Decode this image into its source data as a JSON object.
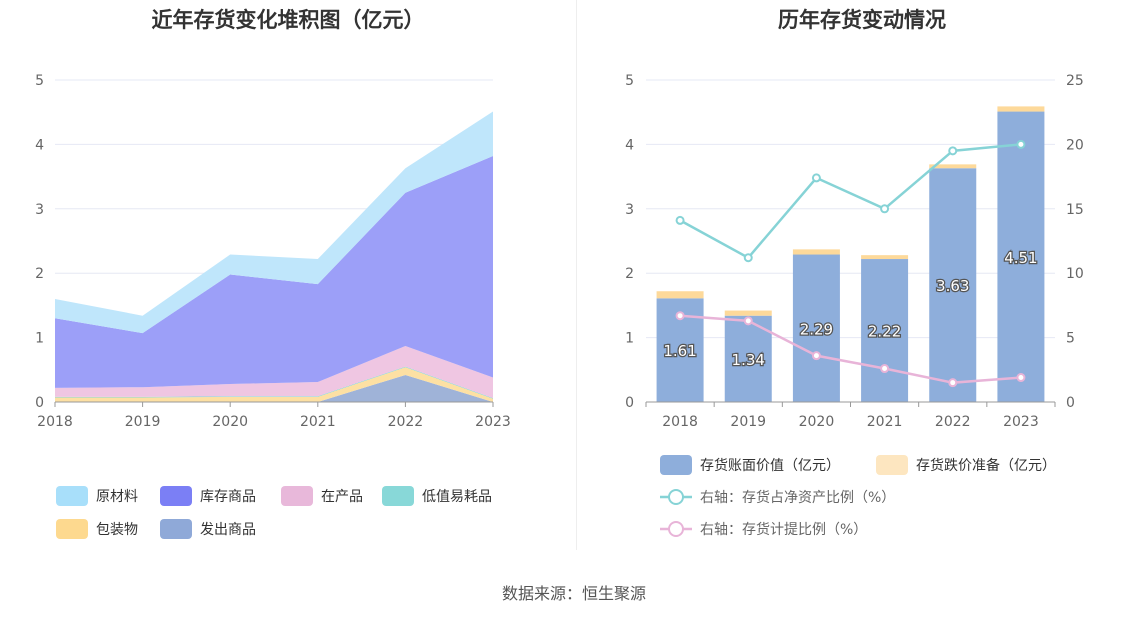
{
  "left_title": "近年存货变化堆积图（亿元）",
  "right_title": "历年存货变动情况",
  "source": "数据来源：恒生聚源",
  "chart_data": [
    {
      "type": "area",
      "stacked": true,
      "title": "近年存货变化堆积图（亿元）",
      "categories": [
        "2018",
        "2019",
        "2020",
        "2021",
        "2022",
        "2023"
      ],
      "ylim": [
        0,
        5
      ],
      "yticks": [
        0,
        1,
        2,
        3,
        4,
        5
      ],
      "series": [
        {
          "name": "发出商品",
          "color": "#9fb3d8",
          "values": [
            0.0,
            0.0,
            0.0,
            0.0,
            0.42,
            0.0
          ]
        },
        {
          "name": "包装物",
          "color": "#fde0a3",
          "values": [
            0.07,
            0.07,
            0.08,
            0.08,
            0.12,
            0.05
          ]
        },
        {
          "name": "低值易耗品",
          "color": "#88d8d8",
          "values": [
            0.01,
            0.01,
            0.01,
            0.01,
            0.01,
            0.01
          ]
        },
        {
          "name": "在产品",
          "color": "#efc6e2",
          "values": [
            0.14,
            0.15,
            0.19,
            0.22,
            0.32,
            0.32
          ]
        },
        {
          "name": "库存商品",
          "color": "#9c9ff8",
          "values": [
            1.08,
            0.84,
            1.7,
            1.52,
            2.38,
            3.44
          ]
        },
        {
          "name": "原材料",
          "color": "#bfe6fb",
          "values": [
            0.3,
            0.27,
            0.31,
            0.39,
            0.38,
            0.69
          ]
        }
      ],
      "legend": [
        {
          "name": "原材料",
          "color": "#a8dffa"
        },
        {
          "name": "库存商品",
          "color": "#7b7ff5"
        },
        {
          "name": "在产品",
          "color": "#e8b8da"
        },
        {
          "name": "低值易耗品",
          "color": "#88d8d8"
        },
        {
          "name": "包装物",
          "color": "#fdd98f"
        },
        {
          "name": "发出商品",
          "color": "#8fa9d8"
        }
      ],
      "legend_position": "bottom"
    },
    {
      "type": "bar",
      "title": "历年存货变动情况",
      "categories": [
        "2018",
        "2019",
        "2020",
        "2021",
        "2022",
        "2023"
      ],
      "ylim": [
        0,
        5
      ],
      "yticks": [
        0,
        1,
        2,
        3,
        4,
        5
      ],
      "y2lim": [
        0,
        25
      ],
      "y2ticks": [
        0,
        5,
        10,
        15,
        20,
        25
      ],
      "series": [
        {
          "name": "存货账面价值（亿元）",
          "type": "bar",
          "stack": "inv",
          "color": "#8eaedb",
          "values": [
            1.61,
            1.34,
            2.29,
            2.22,
            3.63,
            4.51
          ],
          "labels": [
            "1.61",
            "1.34",
            "2.29",
            "2.22",
            "3.63",
            "4.51"
          ]
        },
        {
          "name": "存货跌价准备（亿元）",
          "type": "bar",
          "stack": "inv",
          "color": "#fdd99a",
          "values": [
            0.11,
            0.08,
            0.08,
            0.06,
            0.06,
            0.08
          ]
        },
        {
          "name": "右轴：存货占净资产比例（%）",
          "type": "line",
          "axis": "right",
          "color": "#86d3d6",
          "values": [
            14.1,
            11.2,
            17.4,
            15.0,
            19.5,
            20.0
          ]
        },
        {
          "name": "右轴：存货计提比例（%）",
          "type": "line",
          "axis": "right",
          "color": "#e8b4d8",
          "values": [
            6.7,
            6.3,
            3.6,
            2.6,
            1.5,
            1.9
          ]
        }
      ],
      "legend": [
        {
          "name": "存货账面价值（亿元）",
          "color": "#8eaedb",
          "kind": "bar"
        },
        {
          "name": "存货跌价准备（亿元）",
          "color": "#fde6c0",
          "kind": "bar"
        },
        {
          "name": "右轴：存货占净资产比例（%）",
          "color": "#86d3d6",
          "kind": "line"
        },
        {
          "name": "右轴：存货计提比例（%）",
          "color": "#e8b4d8",
          "kind": "line"
        }
      ],
      "legend_position": "bottom"
    }
  ]
}
